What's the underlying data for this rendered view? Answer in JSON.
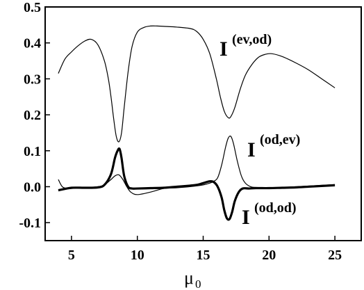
{
  "chart_data": {
    "type": "line",
    "xlim": [
      3.0,
      27.0
    ],
    "ylim": [
      -0.15,
      0.5
    ],
    "x_ticks": [
      5,
      10,
      15,
      20,
      25
    ],
    "y_ticks": [
      0.5,
      0.4,
      0.3,
      0.2,
      0.1,
      0.0,
      -0.1
    ],
    "x_tick_labels": [
      "5",
      "10",
      "15",
      "20",
      "25"
    ],
    "y_tick_labels": [
      "0.5",
      "0.4",
      "0.3",
      "0.2",
      "0.1",
      "0.0",
      "-0.1"
    ],
    "xlabel": "μ",
    "xlabel_subscript": "0",
    "grid": false,
    "series": [
      {
        "label_main": "I",
        "label_sup": "(ev,od)",
        "stroke": "thin",
        "x": [
          4.0,
          4.5,
          5.0,
          5.5,
          6.0,
          6.5,
          7.0,
          7.5,
          7.8,
          8.0,
          8.2,
          8.4,
          8.6,
          8.8,
          9.0,
          9.3,
          9.6,
          10.0,
          10.5,
          11.0,
          11.5,
          12.0,
          13.0,
          14.0,
          14.5,
          15.0,
          15.5,
          16.0,
          16.3,
          16.6,
          16.9,
          17.1,
          17.4,
          17.8,
          18.2,
          18.7,
          19.2,
          19.7,
          20.2,
          21.0,
          22.0,
          23.0,
          24.0,
          25.0
        ],
        "y": [
          0.315,
          0.355,
          0.375,
          0.392,
          0.405,
          0.41,
          0.395,
          0.35,
          0.3,
          0.25,
          0.19,
          0.14,
          0.125,
          0.15,
          0.22,
          0.32,
          0.39,
          0.43,
          0.443,
          0.447,
          0.447,
          0.446,
          0.444,
          0.44,
          0.432,
          0.41,
          0.37,
          0.3,
          0.25,
          0.21,
          0.192,
          0.195,
          0.22,
          0.27,
          0.31,
          0.34,
          0.36,
          0.368,
          0.37,
          0.362,
          0.345,
          0.325,
          0.3,
          0.275
        ]
      },
      {
        "label_main": "I",
        "label_sup": "(od,ev)",
        "stroke": "thin",
        "x": [
          4.0,
          4.3,
          4.7,
          5.0,
          6.0,
          7.0,
          7.5,
          8.0,
          8.3,
          8.6,
          8.9,
          9.2,
          9.5,
          10.0,
          11.0,
          12.0,
          13.0,
          14.0,
          15.0,
          15.5,
          15.8,
          16.1,
          16.4,
          16.7,
          16.9,
          17.1,
          17.3,
          17.6,
          17.9,
          18.2,
          18.6,
          19.0,
          20.0,
          21.0,
          22.0,
          23.0,
          24.0,
          25.0
        ],
        "y": [
          0.02,
          0.0,
          -0.005,
          -0.005,
          -0.003,
          0.0,
          0.005,
          0.02,
          0.03,
          0.033,
          0.02,
          0.0,
          -0.015,
          -0.022,
          -0.015,
          -0.005,
          -0.003,
          0.0,
          0.005,
          0.01,
          0.015,
          0.025,
          0.06,
          0.11,
          0.135,
          0.14,
          0.12,
          0.07,
          0.03,
          0.01,
          0.0,
          -0.002,
          -0.003,
          -0.002,
          0.0,
          0.002,
          0.004,
          0.006
        ]
      },
      {
        "label_main": "I",
        "label_sup": "(od,od)",
        "stroke": "thick",
        "x": [
          4.0,
          5.0,
          6.0,
          7.0,
          7.5,
          8.0,
          8.3,
          8.5,
          8.65,
          8.8,
          9.0,
          9.3,
          9.6,
          10.0,
          11.0,
          12.0,
          13.0,
          14.0,
          14.5,
          15.0,
          15.5,
          15.8,
          16.1,
          16.4,
          16.6,
          16.8,
          17.0,
          17.2,
          17.4,
          17.7,
          18.0,
          18.5,
          19.0,
          20.0,
          21.0,
          22.0,
          23.0,
          24.0,
          25.0
        ],
        "y": [
          -0.01,
          -0.003,
          -0.003,
          -0.002,
          0.005,
          0.035,
          0.08,
          0.1,
          0.105,
          0.08,
          0.03,
          0.0,
          -0.005,
          -0.005,
          -0.004,
          -0.003,
          0.0,
          0.003,
          0.005,
          0.01,
          0.015,
          0.013,
          0.0,
          -0.03,
          -0.065,
          -0.088,
          -0.09,
          -0.07,
          -0.04,
          -0.015,
          -0.005,
          -0.005,
          -0.004,
          -0.004,
          -0.003,
          -0.002,
          0.0,
          0.002,
          0.004
        ]
      }
    ]
  }
}
